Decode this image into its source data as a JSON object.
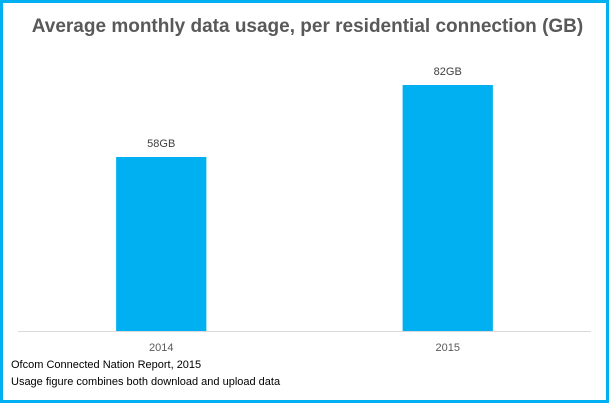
{
  "chart_data": {
    "type": "bar",
    "title": "Average monthly data usage, per residential connection (GB)",
    "categories": [
      "2014",
      "2015"
    ],
    "values": [
      58,
      82
    ],
    "data_labels": [
      "58GB",
      "82GB"
    ],
    "xlabel": "",
    "ylabel": "",
    "ylim": [
      0,
      91
    ],
    "grid": false,
    "legend": "none",
    "bar_color": "#00b0f0",
    "border_color": "#00b0f0"
  },
  "footer": {
    "source": "Ofcom Connected Nation Report, 2015",
    "note": "Usage figure combines both download and upload data"
  }
}
